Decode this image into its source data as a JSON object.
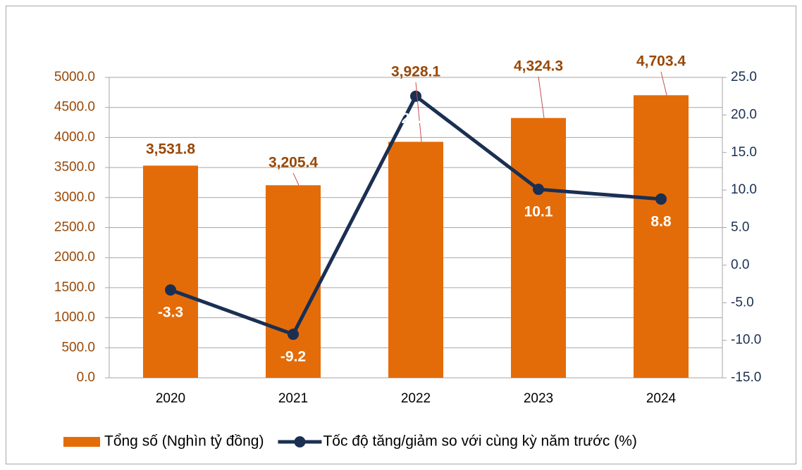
{
  "chart_data": {
    "type": "bar",
    "categories": [
      "2020",
      "2021",
      "2022",
      "2023",
      "2024"
    ],
    "series": [
      {
        "name": "Tổng số (Nghìn tỷ đồng)",
        "type": "bar",
        "color": "#e36c09",
        "values": [
          3531.8,
          3205.4,
          3928.1,
          4324.3,
          4703.4
        ],
        "value_labels": [
          "3,531.8",
          "3,205.4",
          "3,928.1",
          "4,324.3",
          "4,703.4"
        ]
      },
      {
        "name": "Tốc độ tăng/giảm so với cùng kỳ năm trước (%)",
        "type": "line",
        "axis": "y2",
        "color": "#1a2f52",
        "values": [
          -3.3,
          -9.2,
          22.5,
          10.1,
          8.8
        ]
      }
    ],
    "ylim": [
      0,
      5000
    ],
    "yticks": [
      {
        "value": 0,
        "label": "0.0"
      },
      {
        "value": 500,
        "label": "500.0"
      },
      {
        "value": 1000,
        "label": "1000.0"
      },
      {
        "value": 1500,
        "label": "1500.0"
      },
      {
        "value": 2000,
        "label": "2000.0"
      },
      {
        "value": 2500,
        "label": "2500.0"
      },
      {
        "value": 3000,
        "label": "3000.0"
      },
      {
        "value": 3500,
        "label": "3500.0"
      },
      {
        "value": 4000,
        "label": "4000.0"
      },
      {
        "value": 4500,
        "label": "4500.0"
      },
      {
        "value": 5000,
        "label": "5000.0"
      }
    ],
    "y2lim": [
      -15,
      25
    ],
    "y2ticks": [
      {
        "value": -15,
        "label": "-15.0"
      },
      {
        "value": -10,
        "label": "-10.0"
      },
      {
        "value": -5,
        "label": "-5.0"
      },
      {
        "value": 0,
        "label": "0.0"
      },
      {
        "value": 5,
        "label": "5.0"
      },
      {
        "value": 10,
        "label": "10.0"
      },
      {
        "value": 15,
        "label": "15.0"
      },
      {
        "value": 20,
        "label": "20.0"
      },
      {
        "value": 25,
        "label": "25.0"
      }
    ],
    "grid": true,
    "legend": "bottom"
  }
}
